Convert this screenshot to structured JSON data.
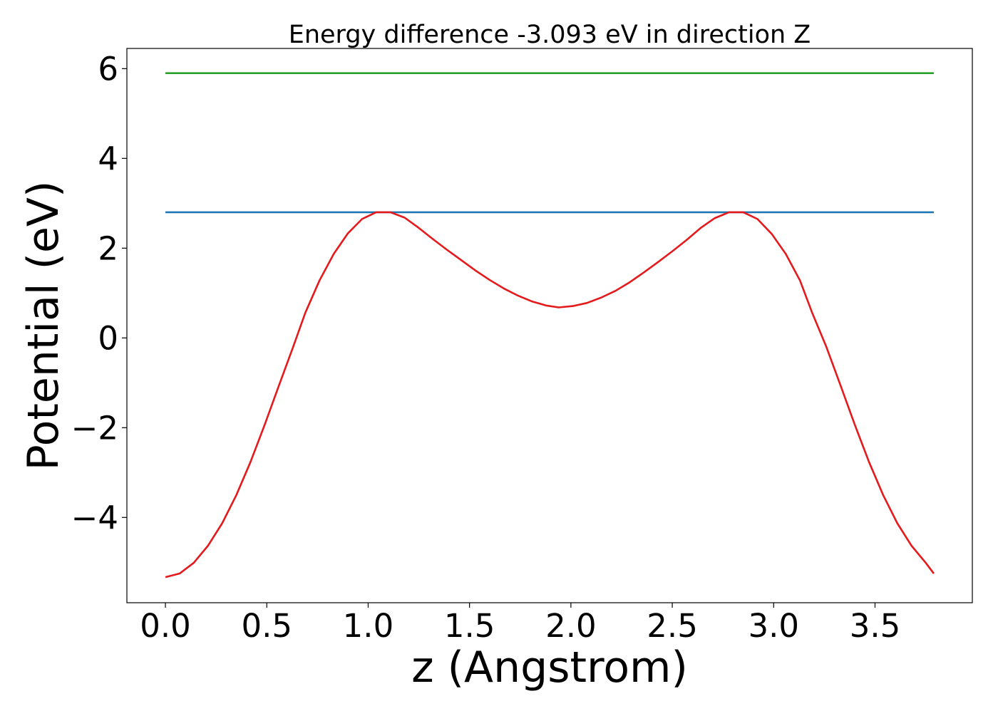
{
  "chart_data": {
    "type": "line",
    "title": "Energy difference -3.093 eV in direction Z",
    "xlabel": "z (Angstrom)",
    "ylabel": "Potential (eV)",
    "xlim": [
      -0.19,
      3.98
    ],
    "ylim": [
      -5.9,
      6.45
    ],
    "xticks": [
      0.0,
      0.5,
      1.0,
      1.5,
      2.0,
      2.5,
      3.0,
      3.5
    ],
    "xtick_labels": [
      "0.0",
      "0.5",
      "1.0",
      "1.5",
      "2.0",
      "2.5",
      "3.0",
      "3.5"
    ],
    "yticks": [
      -4,
      -2,
      0,
      2,
      4,
      6
    ],
    "ytick_labels": [
      "−4",
      "−2",
      "0",
      "2",
      "4",
      "6"
    ],
    "grid": false,
    "legend": false,
    "series": [
      {
        "color": "#2ca02c",
        "x": [
          0.0,
          3.79
        ],
        "y": [
          5.9,
          5.9
        ]
      },
      {
        "color": "#1f77b4",
        "x": [
          0.0,
          3.79
        ],
        "y": [
          2.8,
          2.8
        ]
      },
      {
        "color": "#e41a1c",
        "x": [
          0.0,
          0.07,
          0.14,
          0.21,
          0.28,
          0.35,
          0.42,
          0.49,
          0.56,
          0.63,
          0.69,
          0.76,
          0.83,
          0.9,
          0.97,
          1.04,
          1.11,
          1.18,
          1.25,
          1.32,
          1.39,
          1.46,
          1.53,
          1.6,
          1.67,
          1.74,
          1.81,
          1.88,
          1.94,
          2.01,
          2.08,
          2.15,
          2.22,
          2.29,
          2.36,
          2.43,
          2.5,
          2.57,
          2.64,
          2.71,
          2.78,
          2.85,
          2.92,
          2.99,
          3.06,
          3.13,
          3.19,
          3.26,
          3.33,
          3.4,
          3.47,
          3.54,
          3.61,
          3.68,
          3.75,
          3.79
        ],
        "y": [
          -5.33,
          -5.25,
          -5.01,
          -4.63,
          -4.13,
          -3.5,
          -2.76,
          -1.93,
          -1.06,
          -0.2,
          0.56,
          1.28,
          1.87,
          2.33,
          2.65,
          2.8,
          2.8,
          2.68,
          2.45,
          2.2,
          1.96,
          1.73,
          1.5,
          1.29,
          1.1,
          0.94,
          0.81,
          0.72,
          0.68,
          0.71,
          0.78,
          0.9,
          1.05,
          1.24,
          1.46,
          1.69,
          1.93,
          2.18,
          2.45,
          2.67,
          2.8,
          2.8,
          2.65,
          2.32,
          1.87,
          1.28,
          0.56,
          -0.2,
          -1.06,
          -1.93,
          -2.76,
          -3.5,
          -4.13,
          -4.63,
          -5.01,
          -5.25
        ]
      }
    ]
  }
}
